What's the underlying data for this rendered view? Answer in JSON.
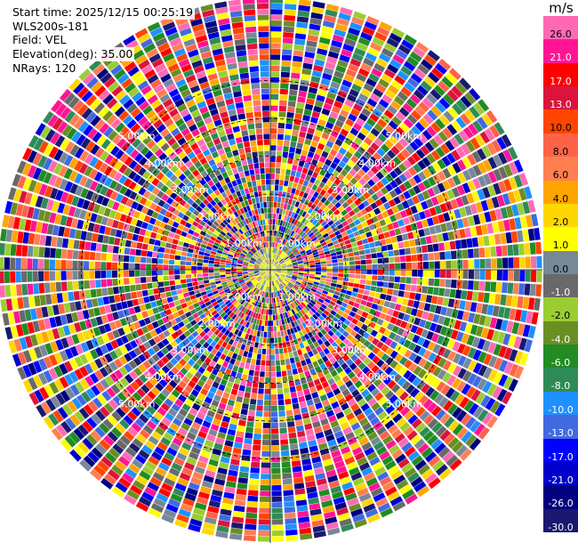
{
  "info": {
    "start_time": "Start time: 2025/12/15 00:25:19",
    "site": "WLS200s-181",
    "field": "Field: VEL",
    "elevation": "Elevation(deg): 35.00",
    "nrays": "NRays: 120"
  },
  "colorbar": {
    "unit": "m/s",
    "colors": [
      "#ff69b4",
      "#ff1493",
      "#ff0000",
      "#dc143c",
      "#ff4500",
      "#ff6347",
      "#ff7f50",
      "#ffa500",
      "#ffd700",
      "#ffff00",
      "#778899",
      "#696969",
      "#9acd32",
      "#6b8e23",
      "#228b22",
      "#2e8b57",
      "#1e90ff",
      "#4169e1",
      "#0000ff",
      "#0000cd",
      "#000080",
      "#191970"
    ],
    "ticks": [
      "26.0",
      "21.0",
      "17.0",
      "13.0",
      "10.0",
      "8.0",
      "6.0",
      "4.0",
      "2.0",
      "1.0",
      "0.0",
      "-1.0",
      "-2.0",
      "-4.0",
      "-6.0",
      "-8.0",
      "-10.0",
      "-13.0",
      "-17.0",
      "-21.0",
      "-26.0",
      "-30.0"
    ]
  },
  "chart_data": {
    "type": "heatmap",
    "projection": "polar",
    "field": "VEL",
    "nrays": 120,
    "range_rings_km": [
      1.0,
      2.0,
      3.0,
      4.0,
      5.0
    ],
    "ring_labels": [
      "1.00km",
      "2.00km",
      "3.00km",
      "4.00km",
      "5.00km"
    ],
    "value_range": [
      -30.0,
      26.0
    ]
  }
}
